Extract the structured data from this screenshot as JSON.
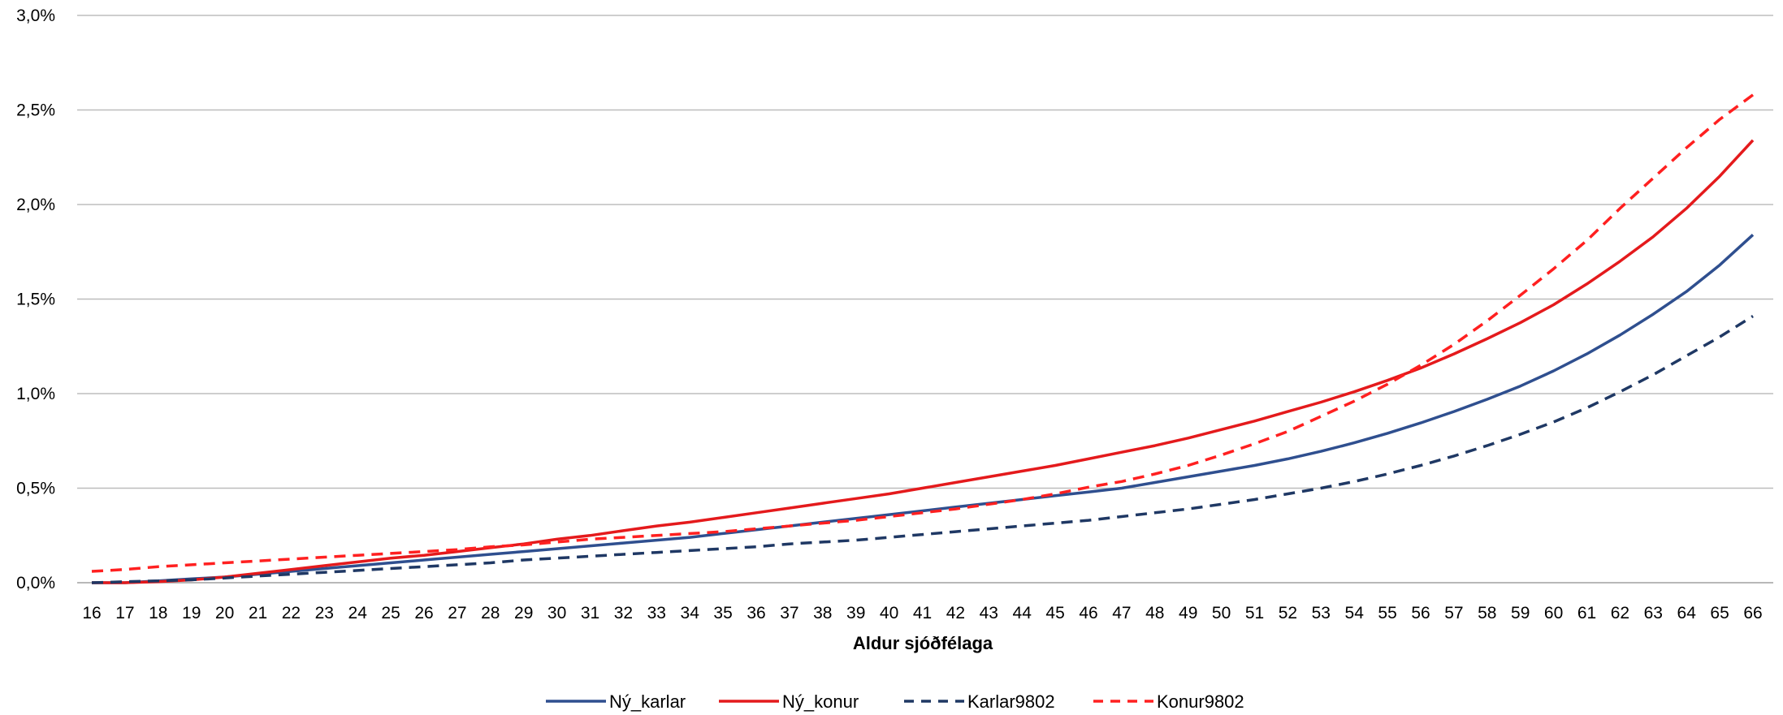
{
  "chart_data": {
    "type": "line",
    "title": "",
    "xlabel": "Aldur sjóðfélaga",
    "ylabel": "",
    "x": [
      16,
      17,
      18,
      19,
      20,
      21,
      22,
      23,
      24,
      25,
      26,
      27,
      28,
      29,
      30,
      31,
      32,
      33,
      34,
      35,
      36,
      37,
      38,
      39,
      40,
      41,
      42,
      43,
      44,
      45,
      46,
      47,
      48,
      49,
      50,
      51,
      52,
      53,
      54,
      55,
      56,
      57,
      58,
      59,
      60,
      61,
      62,
      63,
      64,
      65,
      66
    ],
    "ylim": [
      0,
      3.0
    ],
    "yticks": [
      0,
      0.5,
      1.0,
      1.5,
      2.0,
      2.5,
      3.0
    ],
    "ytick_labels": [
      "0,0%",
      "0,5%",
      "1,0%",
      "1,5%",
      "2,0%",
      "2,5%",
      "3,0%"
    ],
    "grid": "horizontal",
    "legend_position": "bottom",
    "series": [
      {
        "name": "Ný_karlar",
        "color": "#2f4f8f",
        "dash": "solid",
        "values": [
          0.0,
          0.0,
          0.01,
          0.02,
          0.03,
          0.045,
          0.06,
          0.075,
          0.09,
          0.105,
          0.12,
          0.135,
          0.15,
          0.165,
          0.18,
          0.195,
          0.21,
          0.225,
          0.24,
          0.26,
          0.28,
          0.3,
          0.32,
          0.34,
          0.36,
          0.38,
          0.4,
          0.42,
          0.44,
          0.46,
          0.48,
          0.5,
          0.53,
          0.56,
          0.59,
          0.62,
          0.655,
          0.695,
          0.74,
          0.79,
          0.845,
          0.905,
          0.97,
          1.04,
          1.12,
          1.21,
          1.31,
          1.42,
          1.54,
          1.68,
          1.84
        ]
      },
      {
        "name": "Ný_konur",
        "color": "#e41a1c",
        "dash": "solid",
        "values": [
          0.0,
          0.0,
          0.005,
          0.015,
          0.03,
          0.05,
          0.07,
          0.09,
          0.11,
          0.13,
          0.145,
          0.165,
          0.185,
          0.205,
          0.23,
          0.25,
          0.275,
          0.3,
          0.32,
          0.345,
          0.37,
          0.395,
          0.42,
          0.445,
          0.47,
          0.5,
          0.53,
          0.56,
          0.59,
          0.62,
          0.655,
          0.69,
          0.725,
          0.765,
          0.81,
          0.855,
          0.905,
          0.955,
          1.01,
          1.07,
          1.135,
          1.21,
          1.29,
          1.375,
          1.47,
          1.58,
          1.7,
          1.83,
          1.98,
          2.15,
          2.34
        ]
      },
      {
        "name": "Karlar9802",
        "color": "#1f3864",
        "dash": "dashed",
        "values": [
          0.0,
          0.005,
          0.01,
          0.015,
          0.025,
          0.035,
          0.045,
          0.055,
          0.065,
          0.075,
          0.085,
          0.095,
          0.105,
          0.12,
          0.13,
          0.14,
          0.15,
          0.16,
          0.17,
          0.18,
          0.19,
          0.205,
          0.215,
          0.225,
          0.24,
          0.255,
          0.27,
          0.285,
          0.3,
          0.315,
          0.33,
          0.35,
          0.37,
          0.39,
          0.415,
          0.44,
          0.47,
          0.5,
          0.535,
          0.575,
          0.62,
          0.67,
          0.725,
          0.785,
          0.85,
          0.925,
          1.01,
          1.1,
          1.2,
          1.3,
          1.41
        ]
      },
      {
        "name": "Konur9802",
        "color": "#ff2020",
        "dash": "dashed",
        "values": [
          0.06,
          0.07,
          0.085,
          0.095,
          0.105,
          0.115,
          0.125,
          0.135,
          0.145,
          0.155,
          0.165,
          0.175,
          0.19,
          0.2,
          0.215,
          0.23,
          0.24,
          0.25,
          0.26,
          0.27,
          0.285,
          0.3,
          0.315,
          0.33,
          0.35,
          0.37,
          0.39,
          0.415,
          0.44,
          0.47,
          0.505,
          0.535,
          0.575,
          0.62,
          0.675,
          0.735,
          0.8,
          0.88,
          0.96,
          1.05,
          1.15,
          1.26,
          1.385,
          1.52,
          1.66,
          1.81,
          1.98,
          2.14,
          2.3,
          2.45,
          2.58
        ]
      }
    ]
  }
}
